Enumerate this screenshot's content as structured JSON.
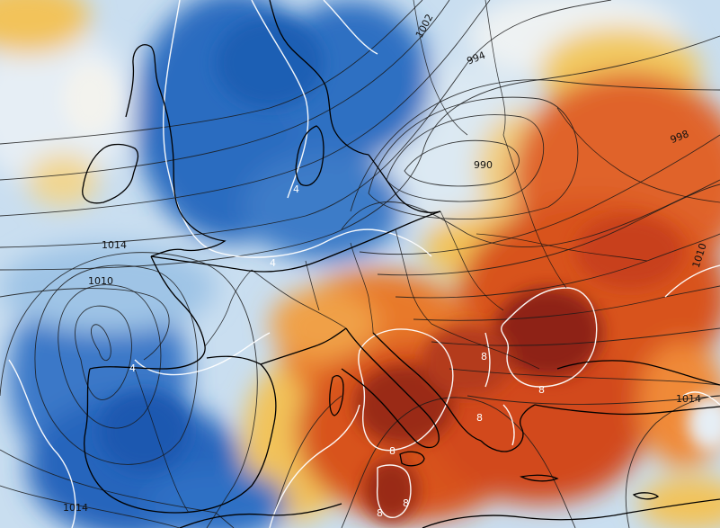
{
  "map": {
    "isobar_labels": [
      {
        "id": "p1002",
        "text": "1002"
      },
      {
        "id": "p994",
        "text": "994"
      },
      {
        "id": "p990",
        "text": "990"
      },
      {
        "id": "p998",
        "text": "998"
      },
      {
        "id": "p1014a",
        "text": "1014"
      },
      {
        "id": "p1010a",
        "text": "1010"
      },
      {
        "id": "p1010b",
        "text": "1010"
      },
      {
        "id": "p1014b",
        "text": "1014"
      },
      {
        "id": "p1014c",
        "text": "1014"
      }
    ],
    "isotherm_labels": [
      {
        "id": "t4a",
        "text": "4"
      },
      {
        "id": "t4b",
        "text": "4"
      },
      {
        "id": "t4c",
        "text": "4"
      },
      {
        "id": "t8a",
        "text": "8"
      },
      {
        "id": "t8b",
        "text": "8"
      },
      {
        "id": "t8c",
        "text": "8"
      },
      {
        "id": "t8d",
        "text": "8"
      },
      {
        "id": "t8e",
        "text": "8"
      },
      {
        "id": "t8f",
        "text": "8"
      }
    ],
    "colors": {
      "deep_blue": "#1f5fb4",
      "mid_blue": "#4f8fd6",
      "light_blue": "#a9cdea",
      "pale": "#eef3f7",
      "yellow": "#f2c35a",
      "orange": "#e8792a",
      "red": "#c8401a",
      "dark_red": "#7a1a12"
    }
  }
}
